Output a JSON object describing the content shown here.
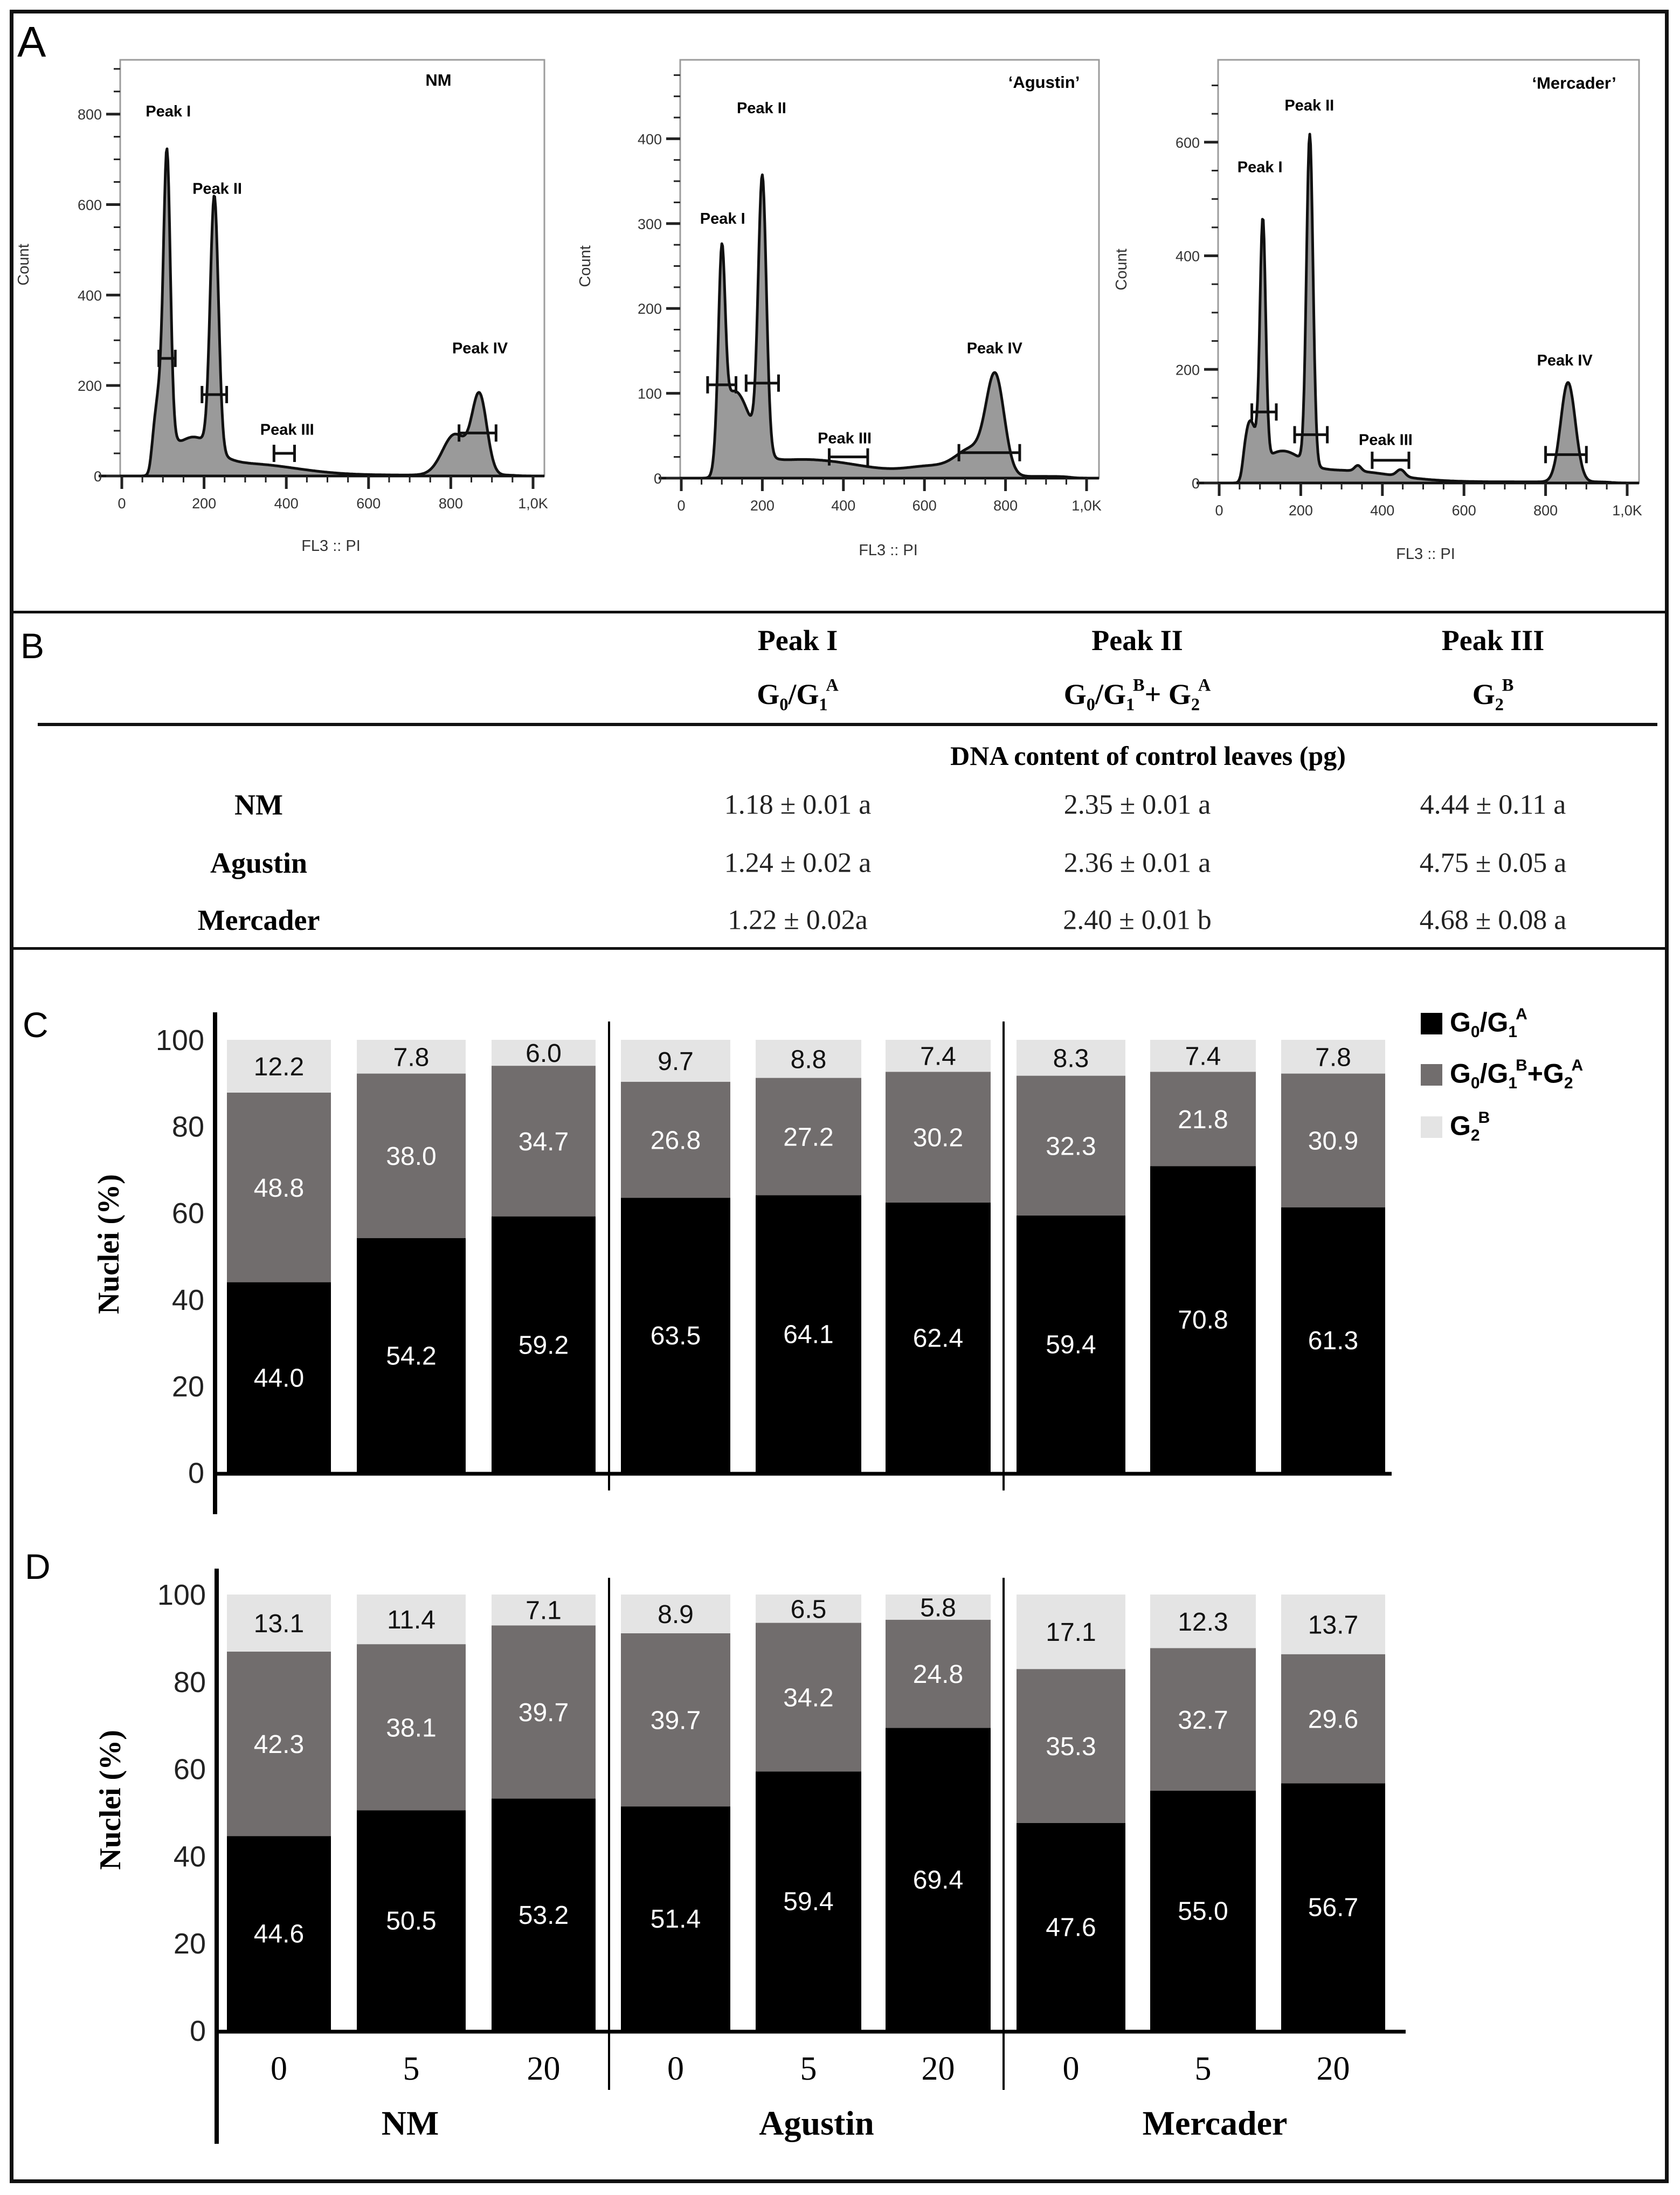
{
  "panels": {
    "a": "A",
    "b": "B",
    "c": "C",
    "d": "D"
  },
  "colors": {
    "g0g1a": "#000000",
    "g0g1b_g2a": "#716d6d",
    "g2b": "#e4e4e4",
    "hist_fill": "#9a9a9a",
    "hist_box": "#9c9c9c"
  },
  "table": {
    "columns": [
      {
        "label": "Peak I",
        "sub": [
          {
            "t": "G",
            "sub": "0"
          },
          {
            "t": "/G",
            "sub": "1",
            "sup": "A"
          }
        ]
      },
      {
        "label": "Peak II",
        "sub": [
          {
            "t": "G",
            "sub": "0"
          },
          {
            "t": "/G",
            "sub": "1",
            "sup": "B"
          },
          {
            "t": "+ G",
            "sub": "2",
            "sup": "A"
          }
        ]
      },
      {
        "label": "Peak III",
        "sub": [
          {
            "t": "G",
            "sub": "2",
            "sup": "B"
          }
        ]
      }
    ],
    "caption": "DNA content of control leaves (pg)",
    "rows": [
      {
        "name": "NM",
        "values": [
          "1.18 ± 0.01 a",
          "2.35 ± 0.01 a",
          "4.44 ± 0.11 a"
        ]
      },
      {
        "name": "Agustin",
        "values": [
          "1.24 ± 0.02 a",
          "2.36 ± 0.01 a",
          "4.75 ± 0.05 a"
        ]
      },
      {
        "name": "Mercader",
        "values": [
          "1.22 ± 0.02a",
          "2.40 ± 0.01 b",
          "4.68 ± 0.08 a"
        ]
      }
    ]
  },
  "chart_data": [
    {
      "type": "area",
      "panel": "A",
      "title": "NM",
      "xlabel": "FL3 :: PI",
      "ylabel": "Count",
      "xlim": [
        0,
        1000
      ],
      "xticks": [
        0,
        200,
        400,
        600,
        800,
        1000
      ],
      "xtick_labels": [
        "0",
        "200",
        "400",
        "600",
        "800",
        "1,0K"
      ],
      "ylim": [
        0,
        920
      ],
      "yticks": [
        0,
        200,
        400,
        600,
        800
      ],
      "ytick_labels": [
        "0",
        "200",
        "400",
        "600",
        "800"
      ],
      "yminor": 50,
      "cutoff": 70,
      "components": [
        [
          110,
          560,
          8
        ],
        [
          95,
          170,
          18
        ],
        [
          170,
          70,
          50
        ],
        [
          300,
          25,
          120
        ],
        [
          225,
          560,
          10
        ],
        [
          870,
          170,
          18
        ],
        [
          810,
          90,
          30
        ]
      ],
      "peaks": [
        {
          "label": "Peak I",
          "gate": [
            90,
            130
          ],
          "gate_count": 260
        },
        {
          "label": "Peak II",
          "gate": [
            195,
            255
          ],
          "gate_count": 180
        },
        {
          "label": "Peak III",
          "gate": [
            370,
            420
          ],
          "gate_count": 50
        },
        {
          "label": "Peak IV",
          "gate": [
            820,
            910
          ],
          "gate_count": 95
        }
      ]
    },
    {
      "type": "area",
      "panel": "A",
      "title": "‘Agustin’",
      "xlabel": "FL3 :: PI",
      "ylabel": "Count",
      "xlim": [
        0,
        1000
      ],
      "xticks": [
        0,
        200,
        400,
        600,
        800,
        1000
      ],
      "xtick_labels": [
        "0",
        "200",
        "400",
        "600",
        "800",
        "1,0K"
      ],
      "ylim": [
        0,
        493
      ],
      "yticks": [
        0,
        100,
        200,
        300,
        400
      ],
      "ytick_labels": [
        "0",
        "100",
        "200",
        "300",
        "400"
      ],
      "yminor": 25,
      "cutoff": 80,
      "components": [
        [
          100,
          200,
          8
        ],
        [
          130,
          90,
          40
        ],
        [
          200,
          320,
          10
        ],
        [
          300,
          20,
          150
        ],
        [
          775,
          110,
          22
        ],
        [
          720,
          30,
          40
        ],
        [
          620,
          10,
          60
        ]
      ],
      "peaks": [
        {
          "label": "Peak I",
          "gate": [
            65,
            135
          ],
          "gate_count": 110
        },
        {
          "label": "Peak II",
          "gate": [
            160,
            240
          ],
          "gate_count": 112
        },
        {
          "label": "Peak III",
          "gate": [
            365,
            460
          ],
          "gate_count": 25
        },
        {
          "label": "Peak IV",
          "gate": [
            685,
            835
          ],
          "gate_count": 30
        }
      ]
    },
    {
      "type": "area",
      "panel": "A",
      "title": "‘Mercader’",
      "xlabel": "FL3 :: PI",
      "ylabel": "Count",
      "xlim": [
        0,
        1000
      ],
      "xticks": [
        0,
        200,
        400,
        600,
        800,
        1000
      ],
      "xtick_labels": [
        "0",
        "200",
        "400",
        "600",
        "800",
        "1,0K"
      ],
      "ylim": [
        0,
        745
      ],
      "yticks": [
        0,
        200,
        400,
        600
      ],
      "ytick_labels": [
        "0",
        "200",
        "400",
        "600"
      ],
      "yminor": 50,
      "cutoff": 55,
      "components": [
        [
          107,
          420,
          7
        ],
        [
          75,
          90,
          15
        ],
        [
          150,
          45,
          50
        ],
        [
          222,
          580,
          8
        ],
        [
          300,
          20,
          120
        ],
        [
          340,
          10,
          8
        ],
        [
          445,
          12,
          10
        ],
        [
          855,
          175,
          18
        ]
      ],
      "peaks": [
        {
          "label": "Peak I",
          "gate": [
            80,
            140
          ],
          "gate_count": 125
        },
        {
          "label": "Peak II",
          "gate": [
            185,
            265
          ],
          "gate_count": 85
        },
        {
          "label": "Peak III",
          "gate": [
            375,
            465
          ],
          "gate_count": 40
        },
        {
          "label": "Peak IV",
          "gate": [
            800,
            900
          ],
          "gate_count": 50
        }
      ]
    },
    {
      "type": "bar",
      "stacked": true,
      "panel": "C",
      "ylabel": "Nuclei (%)",
      "ylim": [
        0,
        100
      ],
      "yticks": [
        0,
        20,
        40,
        60,
        80,
        100
      ],
      "ytick_labels": [
        "0",
        "20",
        "40",
        "60",
        "80",
        "100"
      ],
      "groups": [
        "NM",
        "Agustin",
        "Mercader"
      ],
      "categories": [
        "0",
        "5",
        "20",
        "0",
        "5",
        "20",
        "0",
        "5",
        "20"
      ],
      "legend": [
        {
          "tokens": [
            {
              "t": "G",
              "sub": "0"
            },
            {
              "t": "/G",
              "sub": "1",
              "sup": "A"
            }
          ]
        },
        {
          "tokens": [
            {
              "t": "G",
              "sub": "0"
            },
            {
              "t": "/G",
              "sub": "1",
              "sup": "B"
            },
            {
              "t": "+G",
              "sub": "2",
              "sup": "A"
            }
          ]
        },
        {
          "tokens": [
            {
              "t": "G",
              "sub": "2",
              "sup": "B"
            }
          ]
        }
      ],
      "legend_position": "top-right",
      "series": [
        {
          "name": "G0/G1A",
          "values": [
            44.0,
            54.2,
            59.2,
            63.5,
            64.1,
            62.4,
            59.4,
            70.8,
            61.3
          ],
          "labels": [
            "44.0",
            "54.2",
            "59.2",
            "63.5",
            "64.1",
            "62.4",
            "59.4",
            "70.8",
            "61.3"
          ]
        },
        {
          "name": "G0/G1B+G2A",
          "values": [
            48.8,
            38.0,
            34.7,
            26.8,
            27.2,
            30.2,
            32.3,
            21.8,
            30.9
          ],
          "labels": [
            "48.8",
            "38.0",
            "34.7",
            "26.8",
            "27.2",
            "30.2",
            "32.3",
            "21.8",
            "30.9"
          ]
        },
        {
          "name": "G2B",
          "values": [
            12.2,
            7.8,
            6.0,
            9.7,
            8.8,
            7.4,
            8.3,
            7.4,
            7.8
          ],
          "labels": [
            "12.2",
            "7.8",
            "6.0",
            "9.7",
            "8.8",
            "7.4",
            "8.3",
            "7.4",
            "7.8"
          ]
        }
      ]
    },
    {
      "type": "bar",
      "stacked": true,
      "panel": "D",
      "ylabel": "Nuclei (%)",
      "ylim": [
        0,
        100
      ],
      "yticks": [
        0,
        20,
        40,
        60,
        80,
        100
      ],
      "ytick_labels": [
        "0",
        "20",
        "40",
        "60",
        "80",
        "100"
      ],
      "groups": [
        "NM",
        "Agustin",
        "Mercader"
      ],
      "categories": [
        "0",
        "5",
        "20",
        "0",
        "5",
        "20",
        "0",
        "5",
        "20"
      ],
      "series": [
        {
          "name": "G0/G1A",
          "values": [
            44.6,
            50.5,
            53.2,
            51.4,
            59.4,
            69.4,
            47.6,
            55.0,
            56.7
          ],
          "labels": [
            "44.6",
            "50.5",
            "53.2",
            "51.4",
            "59.4",
            "69.4",
            "47.6",
            "55.0",
            "56.7"
          ]
        },
        {
          "name": "G0/G1B+G2A",
          "values": [
            42.3,
            38.1,
            39.7,
            39.7,
            34.2,
            24.8,
            35.3,
            32.7,
            29.6
          ],
          "labels": [
            "42.3",
            "38.1",
            "39.7",
            "39.7",
            "34.2",
            "24.8",
            "35.3",
            "32.7",
            "29.6"
          ]
        },
        {
          "name": "G2B",
          "values": [
            13.1,
            11.4,
            7.1,
            8.9,
            6.5,
            5.8,
            17.1,
            12.3,
            13.7
          ],
          "labels": [
            "13.1",
            "11.4",
            "7.1",
            "8.9",
            "6.5",
            "5.8",
            "17.1",
            "12.3",
            "13.7"
          ]
        }
      ]
    }
  ]
}
